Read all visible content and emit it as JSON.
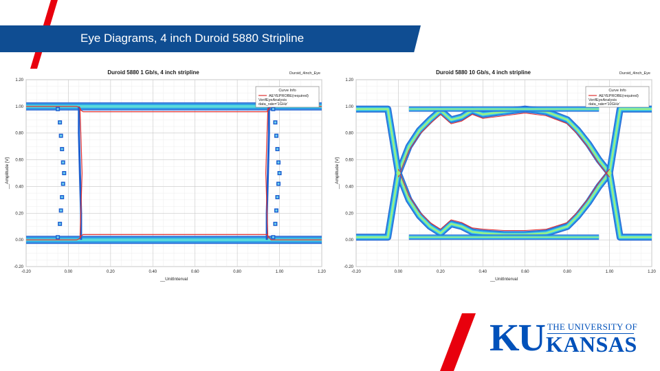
{
  "slide": {
    "title": "Eye Diagrams, 4 inch Duroid 5880 Stripline",
    "colors": {
      "banner": "#0f4d92",
      "accent": "#e8000d",
      "logo": "#0051ba"
    }
  },
  "logo": {
    "monogram": "KU",
    "line1": "THE UNIVERSITY OF",
    "line2": "KANSAS"
  },
  "chart_data": [
    {
      "type": "line",
      "title": "Duroid 5880 1 Gb/s, 4 inch stripline",
      "tab_label": "Duroid_4inch_Eye",
      "xlabel": "__UnitInterval",
      "ylabel": "__Amplitude [V]",
      "xlim": [
        -0.2,
        1.2
      ],
      "ylim": [
        -0.2,
        1.2
      ],
      "xticks": [
        "-0.20",
        "0.00",
        "0.20",
        "0.40",
        "0.60",
        "0.80",
        "1.00",
        "1.20"
      ],
      "yticks": [
        "1.20",
        "1.00",
        "0.80",
        "0.60",
        "0.40",
        "0.20",
        "0.00",
        "-0.20"
      ],
      "grid": true,
      "legend_placement": "top-right",
      "legend": {
        "header": "Curve Info",
        "entries": [
          "AEYEPROBE(required)",
          "VerifEyeAnalysis",
          "data_rate='1GHz'"
        ]
      },
      "series": [
        {
          "name": "AEYEPROBE(required)",
          "x": [
            -0.2,
            0.0,
            0.04,
            0.055,
            0.06,
            0.07,
            0.94,
            0.945,
            0.955,
            0.96,
            1.0,
            1.2
          ],
          "y_high": [
            1.0,
            1.0,
            1.0,
            0.99,
            0.97,
            0.96,
            0.96,
            0.97,
            0.99,
            1.0,
            1.0,
            1.0
          ],
          "y_low": [
            0.0,
            0.0,
            0.0,
            0.01,
            0.03,
            0.04,
            0.04,
            0.03,
            0.01,
            0.0,
            0.0,
            0.0
          ]
        }
      ],
      "mask_points_left": {
        "x": [
          -0.05,
          -0.04,
          -0.035,
          -0.03,
          -0.025,
          -0.02,
          -0.025,
          -0.03,
          -0.035,
          -0.04,
          -0.05
        ],
        "y": [
          0.98,
          0.88,
          0.78,
          0.68,
          0.58,
          0.5,
          0.42,
          0.32,
          0.22,
          0.12,
          0.02
        ]
      },
      "mask_points_right": {
        "x": [
          0.97,
          0.98,
          0.985,
          0.99,
          0.995,
          1.0,
          0.995,
          0.99,
          0.985,
          0.98,
          0.97
        ],
        "y": [
          0.98,
          0.88,
          0.78,
          0.68,
          0.58,
          0.5,
          0.42,
          0.32,
          0.22,
          0.12,
          0.02
        ]
      }
    },
    {
      "type": "line",
      "title": "Duroid 5880 10 Gb/s, 4 inch stripline",
      "tab_label": "Duroid_4inch_Eye",
      "xlabel": "__UnitInterval",
      "ylabel": "__Amplitude [V]",
      "xlim": [
        -0.2,
        1.2
      ],
      "ylim": [
        -0.2,
        1.2
      ],
      "xticks": [
        "-0.20",
        "0.00",
        "0.20",
        "0.40",
        "0.60",
        "0.80",
        "1.00",
        "1.20"
      ],
      "yticks": [
        "1.20",
        "1.00",
        "0.80",
        "0.60",
        "0.40",
        "0.20",
        "0.00",
        "-0.20"
      ],
      "grid": true,
      "legend_placement": "top-right",
      "legend": {
        "header": "Curve Info",
        "entries": [
          "AEYEPROBE(required)",
          "VerifEyeAnalysis",
          "data_rate='10GHz'"
        ]
      },
      "series": [
        {
          "name": "AEYEPROBE(required)",
          "x": [
            0.0,
            0.05,
            0.1,
            0.15,
            0.2,
            0.25,
            0.3,
            0.35,
            0.4,
            0.5,
            0.6,
            0.7,
            0.8,
            0.85,
            0.9,
            0.95,
            1.0
          ],
          "y_high": [
            0.5,
            0.7,
            0.82,
            0.9,
            0.97,
            0.9,
            0.92,
            0.97,
            0.94,
            0.96,
            0.98,
            0.96,
            0.9,
            0.82,
            0.72,
            0.6,
            0.5
          ],
          "y_low": [
            0.5,
            0.3,
            0.18,
            0.1,
            0.05,
            0.12,
            0.1,
            0.06,
            0.05,
            0.04,
            0.04,
            0.05,
            0.1,
            0.18,
            0.28,
            0.4,
            0.5
          ]
        }
      ],
      "crossings": [
        {
          "x": 0.0,
          "y": 0.5
        },
        {
          "x": 1.0,
          "y": 0.5
        }
      ]
    }
  ]
}
